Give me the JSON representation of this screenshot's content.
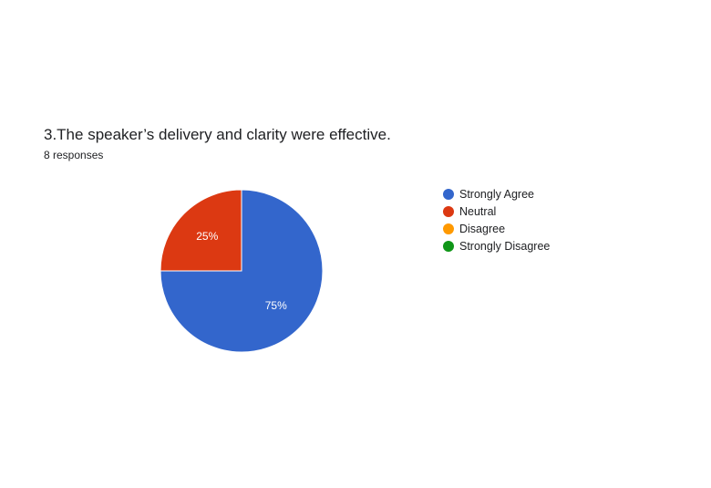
{
  "chart_data": {
    "type": "pie",
    "title": "3.The speaker’s delivery and clarity were effective.",
    "subtitle": "8 responses",
    "categories": [
      "Strongly Agree",
      "Neutral",
      "Disagree",
      "Strongly Disagree"
    ],
    "values": [
      75,
      25,
      0,
      0
    ],
    "labels": [
      "75%",
      "25%",
      "",
      ""
    ],
    "colors": [
      "#3366cc",
      "#dc3912",
      "#ff9900",
      "#109618"
    ],
    "legend_position": "right"
  }
}
